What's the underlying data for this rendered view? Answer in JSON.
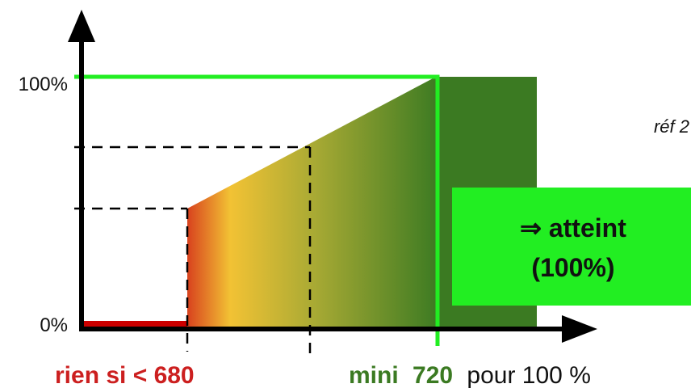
{
  "axes": {
    "y_top_label": "100%",
    "y_bottom_label": "0%"
  },
  "reference": "réf 2",
  "callout": {
    "line1": "⇒ atteint",
    "line2": "(100%)"
  },
  "bottom_labels": {
    "threshold": "rien si < 680",
    "minimum_prefix": "mini",
    "minimum_value": "720",
    "minimum_suffix": "pour 100 %"
  },
  "colors": {
    "axis": "#000000",
    "zero_line": "#cc0000",
    "threshold_text": "#cc1f1f",
    "green_line": "#22ee22",
    "callout_bg": "#22ee22",
    "dark_green": "#3b7a22",
    "minimum_text": "#3b7a22",
    "gradient_start": "#d8421e",
    "gradient_yellow": "#f2c234",
    "gradient_mid": "#a9aa34",
    "gradient_end": "#3b7a22"
  }
}
